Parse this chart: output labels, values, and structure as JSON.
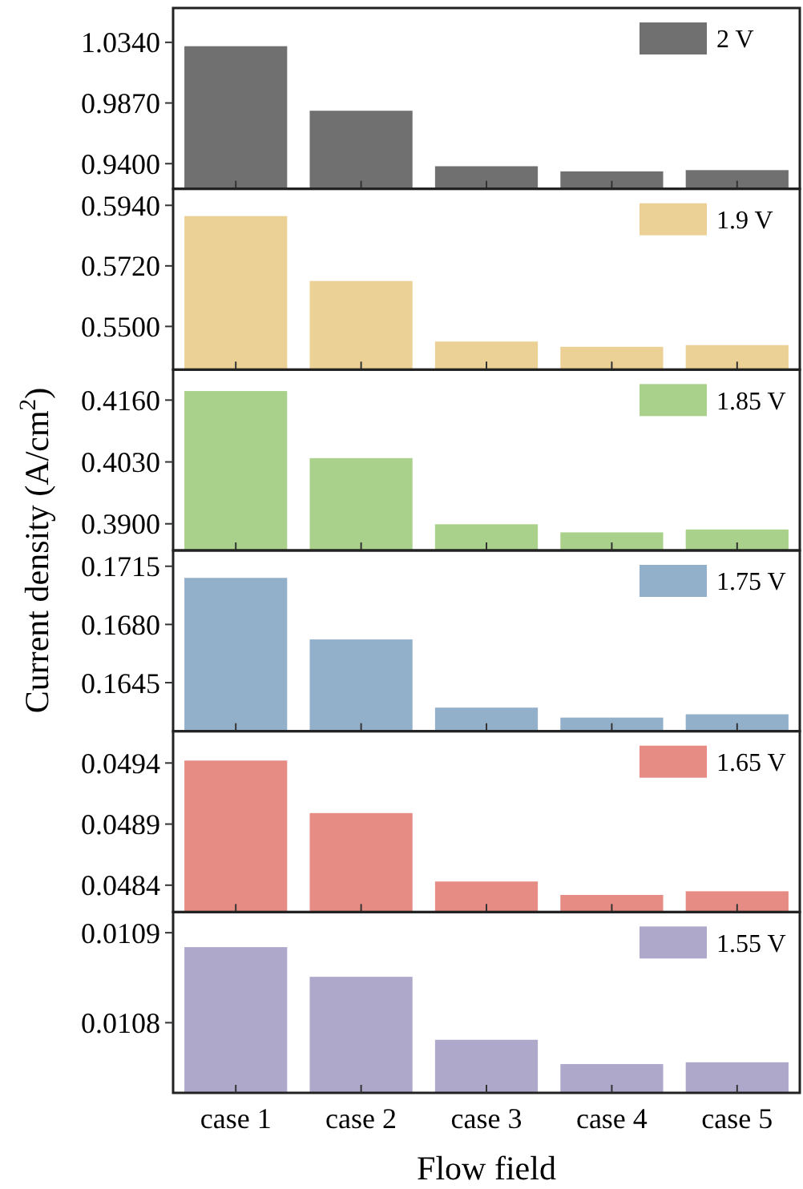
{
  "chart_data": [
    {
      "type": "bar",
      "ylabel": "Current density (A/cm$^{2}$)",
      "categories": [
        null,
        null,
        null,
        null,
        null
      ],
      "series": [
        {
          "name": "2 V",
          "color": "#707070",
          "values": [
            1.031,
            0.981,
            0.938,
            0.934,
            0.935
          ]
        }
      ],
      "ylim": [
        0.9205,
        1.0606
      ],
      "yticks": [
        {
          "value": 0.94,
          "label": "0.9400"
        },
        {
          "value": 0.987,
          "label": "0.9870"
        },
        {
          "value": 1.034,
          "label": "1.0340"
        }
      ],
      "legend": "top right"
    },
    {
      "type": "bar",
      "categories": [
        null,
        null,
        null,
        null,
        null
      ],
      "series": [
        {
          "name": "1.9 V",
          "color": "#ebd195",
          "values": [
            0.5901,
            0.5665,
            0.5445,
            0.5426,
            0.5432
          ]
        }
      ],
      "ylim": [
        0.5343,
        0.6
      ],
      "yticks": [
        {
          "value": 0.55,
          "label": "0.5500"
        },
        {
          "value": 0.572,
          "label": "0.5720"
        },
        {
          "value": 0.594,
          "label": "0.5940"
        }
      ],
      "legend": "top right"
    },
    {
      "type": "bar",
      "categories": [
        null,
        null,
        null,
        null,
        null
      ],
      "series": [
        {
          "name": "1.85 V",
          "color": "#aad18b",
          "values": [
            0.4179,
            0.4038,
            0.3899,
            0.3882,
            0.3888
          ]
        }
      ],
      "ylim": [
        0.3844,
        0.4224
      ],
      "yticks": [
        {
          "value": 0.39,
          "label": "0.3900"
        },
        {
          "value": 0.403,
          "label": "0.4030"
        },
        {
          "value": 0.416,
          "label": "0.4160"
        }
      ],
      "legend": "top right"
    },
    {
      "type": "bar",
      "categories": [
        null,
        null,
        null,
        null,
        null
      ],
      "series": [
        {
          "name": "1.75 V",
          "color": "#93b0cb",
          "values": [
            0.1708,
            0.1671,
            0.163,
            0.1624,
            0.1626
          ]
        }
      ],
      "ylim": [
        0.16158,
        0.17245
      ],
      "yticks": [
        {
          "value": 0.1645,
          "label": "0.1645"
        },
        {
          "value": 0.168,
          "label": "0.1680"
        },
        {
          "value": 0.1715,
          "label": "0.1715"
        }
      ],
      "legend": "top right"
    },
    {
      "type": "bar",
      "categories": [
        null,
        null,
        null,
        null,
        null
      ],
      "series": [
        {
          "name": "1.65 V",
          "color": "#e68c84",
          "values": [
            0.04942,
            0.04899,
            0.04843,
            0.04832,
            0.04835
          ]
        }
      ],
      "ylim": [
        0.04818,
        0.04966
      ],
      "yticks": [
        {
          "value": 0.0484,
          "label": "0.0484"
        },
        {
          "value": 0.0489,
          "label": "0.0489"
        },
        {
          "value": 0.0494,
          "label": "0.0494"
        }
      ],
      "legend": "top right"
    },
    {
      "type": "bar",
      "xlabel": "Flow field",
      "categories": [
        "case 1",
        "case 2",
        "case 3",
        "case 4",
        "case 5"
      ],
      "series": [
        {
          "name": "1.55 V",
          "color": "#aea8cb",
          "values": [
            0.010884,
            0.010851,
            0.010781,
            0.010754,
            0.010756
          ]
        }
      ],
      "ylim": [
        0.010722,
        0.010923
      ],
      "yticks": [
        {
          "value": 0.0108,
          "label": "0.0108"
        },
        {
          "value": 0.0109,
          "label": "0.0109"
        }
      ],
      "legend": "top right"
    }
  ]
}
